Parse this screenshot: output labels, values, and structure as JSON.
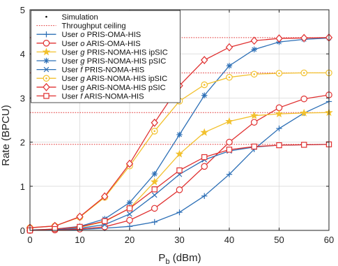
{
  "chart_data": {
    "type": "line",
    "xlabel_main": "P",
    "xlabel_sub": "b",
    "xlabel_unit": " (dBm)",
    "ylabel": "Rate (BPCU)",
    "xlim": [
      0,
      60
    ],
    "ylim": [
      0,
      5
    ],
    "xticks": [
      0,
      10,
      20,
      30,
      40,
      50,
      60
    ],
    "yticks": [
      0,
      1,
      2,
      3,
      4,
      5
    ],
    "grid": true,
    "legend_position": "top-left",
    "x": [
      0,
      5,
      10,
      15,
      20,
      25,
      30,
      35,
      40,
      45,
      50,
      55,
      60
    ],
    "legend_misc": [
      {
        "label": "Simulation",
        "kind": "dot",
        "color": "#000000"
      },
      {
        "label": "Throughput ceiling",
        "kind": "dotted-line",
        "color": "#e03030"
      }
    ],
    "ceilings": [
      4.37,
      3.57,
      2.67,
      1.95
    ],
    "series": [
      {
        "name": [
          "User ",
          "o",
          " PRIS-OMA-HIS"
        ],
        "color": "#2c6fb6",
        "marker": "plus",
        "values": [
          0.0,
          0.01,
          0.02,
          0.05,
          0.09,
          0.19,
          0.41,
          0.78,
          1.27,
          1.84,
          2.31,
          2.66,
          2.92
        ]
      },
      {
        "name": [
          "User ",
          "o",
          " ARIS-OMA-HIS"
        ],
        "color": "#e03030",
        "marker": "circle",
        "values": [
          0.0,
          0.01,
          0.03,
          0.08,
          0.23,
          0.5,
          0.92,
          1.45,
          2.0,
          2.45,
          2.78,
          2.98,
          3.07
        ]
      },
      {
        "name": [
          "User ",
          "g",
          " PRIS-NOMA-HIS ipSIC"
        ],
        "color": "#f2c12e",
        "marker": "star",
        "values": [
          0.01,
          0.03,
          0.07,
          0.2,
          0.5,
          1.1,
          1.73,
          2.22,
          2.47,
          2.6,
          2.64,
          2.66,
          2.67
        ]
      },
      {
        "name": [
          "User ",
          "g",
          " PRIS-NOMA-HIS pSIC"
        ],
        "color": "#2c6fb6",
        "marker": "asterisk",
        "values": [
          0.01,
          0.03,
          0.09,
          0.26,
          0.63,
          1.28,
          2.17,
          3.06,
          3.73,
          4.1,
          4.27,
          4.33,
          4.36
        ]
      },
      {
        "name": [
          "User ",
          "f",
          " PRIS-NOMA-HIS"
        ],
        "color": "#2c6fb6",
        "marker": "x",
        "values": [
          0.0,
          0.02,
          0.05,
          0.13,
          0.37,
          0.8,
          1.27,
          1.6,
          1.8,
          1.89,
          1.93,
          1.94,
          1.95
        ]
      },
      {
        "name": [
          "User ",
          "g",
          " ARIS-NOMA-HIS ipSIC"
        ],
        "color": "#f2c12e",
        "marker": "circle-dot",
        "values": [
          0.06,
          0.1,
          0.3,
          0.75,
          1.46,
          2.25,
          2.93,
          3.3,
          3.47,
          3.54,
          3.56,
          3.57,
          3.57
        ]
      },
      {
        "name": [
          "User ",
          "g",
          " ARIS-NOMA-HIS pSIC"
        ],
        "color": "#e03030",
        "marker": "diamond",
        "values": [
          0.06,
          0.1,
          0.31,
          0.77,
          1.51,
          2.44,
          3.28,
          3.86,
          4.15,
          4.3,
          4.35,
          4.36,
          4.37
        ]
      },
      {
        "name": [
          "User ",
          "f",
          " ARIS-NOMA-HIS"
        ],
        "color": "#e03030",
        "marker": "square",
        "values": [
          0.0,
          0.03,
          0.08,
          0.21,
          0.5,
          0.93,
          1.36,
          1.66,
          1.83,
          1.9,
          1.93,
          1.94,
          1.95
        ]
      }
    ]
  }
}
